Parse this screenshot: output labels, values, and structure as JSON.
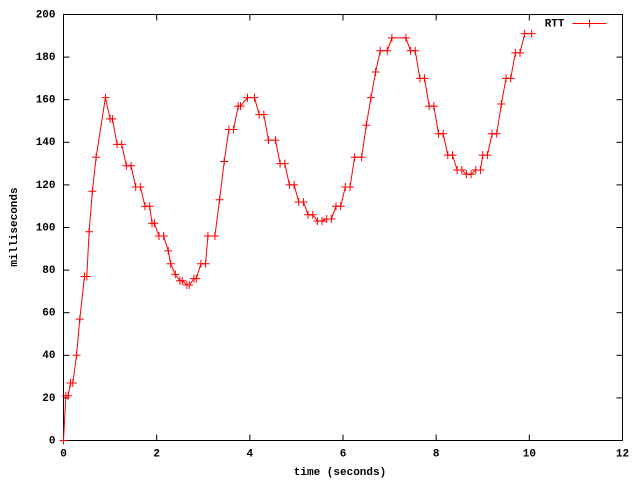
{
  "chart_data": {
    "type": "line",
    "x_label": "time (seconds)",
    "y_label": "milliseconds",
    "x": [
      0,
      0.05,
      0.1,
      0.15,
      0.2,
      0.28,
      0.35,
      0.45,
      0.5,
      0.55,
      0.62,
      0.7,
      0.9,
      1.0,
      1.05,
      1.15,
      1.25,
      1.35,
      1.45,
      1.55,
      1.65,
      1.75,
      1.85,
      1.9,
      1.95,
      2.05,
      2.15,
      2.25,
      2.3,
      2.4,
      2.5,
      2.55,
      2.65,
      2.7,
      2.8,
      2.85,
      2.95,
      3.05,
      3.1,
      3.25,
      3.35,
      3.45,
      3.55,
      3.65,
      3.75,
      3.8,
      3.95,
      4.1,
      4.2,
      4.3,
      4.4,
      4.55,
      4.65,
      4.75,
      4.85,
      4.95,
      5.05,
      5.15,
      5.25,
      5.35,
      5.45,
      5.55,
      5.65,
      5.75,
      5.85,
      5.95,
      6.05,
      6.15,
      6.25,
      6.4,
      6.5,
      6.6,
      6.7,
      6.8,
      6.95,
      7.05,
      7.35,
      7.45,
      7.55,
      7.65,
      7.75,
      7.85,
      7.95,
      8.05,
      8.15,
      8.25,
      8.35,
      8.45,
      8.55,
      8.65,
      8.75,
      8.85,
      8.95,
      9.0,
      9.1,
      9.2,
      9.3,
      9.4,
      9.5,
      9.6,
      9.7,
      9.8,
      9.9,
      10.05
    ],
    "series": [
      {
        "name": "RTT",
        "color": "#ff0000",
        "values": [
          0,
          21,
          21,
          27,
          27,
          40,
          57,
          77,
          77,
          98,
          117,
          133,
          161,
          151,
          151,
          139,
          139,
          129,
          129,
          119,
          119,
          110,
          110,
          102,
          102,
          96,
          96,
          89,
          83,
          78,
          75,
          75,
          73,
          73,
          76,
          76,
          83,
          83,
          96,
          96,
          113,
          131,
          146,
          146,
          157,
          157,
          161,
          161,
          153,
          153,
          141,
          141,
          130,
          130,
          120,
          120,
          112,
          112,
          106,
          106,
          103,
          103,
          104,
          104,
          110,
          110,
          119,
          119,
          133,
          133,
          148,
          161,
          173,
          183,
          183,
          189,
          189,
          183,
          183,
          170,
          170,
          157,
          157,
          144,
          144,
          134,
          134,
          127,
          127,
          125,
          125,
          127,
          127,
          134,
          134,
          144,
          144,
          158,
          170,
          170,
          182,
          182,
          191,
          191
        ]
      }
    ],
    "xlim": [
      0,
      12
    ],
    "xticks": [
      0,
      2,
      4,
      6,
      8,
      10,
      12
    ],
    "ylim": [
      0,
      200
    ],
    "yticks": [
      0,
      20,
      40,
      60,
      80,
      100,
      120,
      140,
      160,
      180,
      200
    ],
    "legend": "top-right"
  }
}
